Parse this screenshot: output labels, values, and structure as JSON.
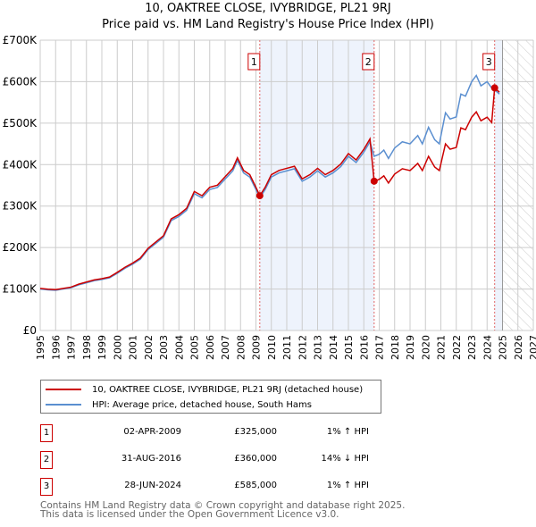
{
  "title": "10, OAKTREE CLOSE, IVYBRIDGE, PL21 9RJ",
  "subtitle": "Price paid vs. HM Land Registry's House Price Index (HPI)",
  "chart_data": {
    "type": "line",
    "xlim": [
      1995,
      2027
    ],
    "ylim": [
      0,
      700000
    ],
    "y_ticks": [
      {
        "v": 0,
        "label": "£0"
      },
      {
        "v": 100000,
        "label": "£100K"
      },
      {
        "v": 200000,
        "label": "£200K"
      },
      {
        "v": 300000,
        "label": "£300K"
      },
      {
        "v": 400000,
        "label": "£400K"
      },
      {
        "v": 500000,
        "label": "£500K"
      },
      {
        "v": 600000,
        "label": "£600K"
      },
      {
        "v": 700000,
        "label": "£700K"
      }
    ],
    "x_ticks": [
      "1995",
      "1996",
      "1997",
      "1998",
      "1999",
      "2000",
      "2001",
      "2002",
      "2003",
      "2004",
      "2005",
      "2006",
      "2007",
      "2008",
      "2009",
      "2010",
      "2011",
      "2012",
      "2013",
      "2014",
      "2015",
      "2016",
      "2017",
      "2018",
      "2019",
      "2020",
      "2021",
      "2022",
      "2023",
      "2024",
      "2025",
      "2026",
      "2027"
    ],
    "forecast_from": 2025.0,
    "colors": {
      "price": "#cc0000",
      "hpi": "#5b8fd0",
      "shade": "#eef3fc"
    },
    "hpi_series": {
      "name": "HPI: Average price, detached house, South Hams",
      "x": [
        1995.0,
        1995.5,
        1996,
        1996.5,
        1997,
        1997.5,
        1998,
        1998.5,
        1999,
        1999.5,
        2000,
        2000.5,
        2001,
        2001.5,
        2002,
        2002.5,
        2003,
        2003.5,
        2004,
        2004.5,
        2005,
        2005.5,
        2006,
        2006.5,
        2007,
        2007.5,
        2007.8,
        2008.2,
        2008.6,
        2009.0,
        2009.25,
        2009.6,
        2010,
        2010.5,
        2011,
        2011.5,
        2012,
        2012.5,
        2013,
        2013.5,
        2014,
        2014.5,
        2015,
        2015.5,
        2016,
        2016.4,
        2016.67,
        2017,
        2017.3,
        2017.6,
        2018,
        2018.5,
        2019,
        2019.5,
        2019.8,
        2020.2,
        2020.6,
        2020.9,
        2021.3,
        2021.6,
        2022,
        2022.3,
        2022.6,
        2023,
        2023.3,
        2023.6,
        2024,
        2024.3,
        2024.5,
        2024.8
      ],
      "y": [
        100000,
        98000,
        97000,
        100000,
        103000,
        110000,
        115000,
        120000,
        123000,
        127000,
        138000,
        150000,
        160000,
        172000,
        195000,
        210000,
        225000,
        265000,
        275000,
        290000,
        330000,
        320000,
        340000,
        345000,
        365000,
        385000,
        410000,
        380000,
        370000,
        340000,
        320000,
        340000,
        370000,
        380000,
        385000,
        390000,
        360000,
        370000,
        385000,
        370000,
        380000,
        395000,
        420000,
        405000,
        430000,
        455000,
        420000,
        425000,
        435000,
        415000,
        440000,
        455000,
        450000,
        470000,
        450000,
        490000,
        460000,
        450000,
        525000,
        510000,
        515000,
        570000,
        565000,
        600000,
        615000,
        590000,
        600000,
        585000,
        580000,
        570000
      ]
    },
    "price_series": {
      "name": "10, OAKTREE CLOSE, IVYBRIDGE, PL21 9RJ (detached house)"
    },
    "sales": [
      {
        "n": "1",
        "x": 2009.25,
        "date": "02-APR-2009",
        "price": 325000,
        "price_label": "£325,000",
        "hpi_label": "1% ↑ HPI"
      },
      {
        "n": "2",
        "x": 2016.67,
        "date": "31-AUG-2016",
        "price": 360000,
        "price_label": "£360,000",
        "hpi_label": "14% ↓ HPI"
      },
      {
        "n": "3",
        "x": 2024.49,
        "date": "28-JUN-2024",
        "price": 585000,
        "price_label": "£585,000",
        "hpi_label": "1% ↑ HPI"
      }
    ]
  },
  "legend": {
    "price": "10, OAKTREE CLOSE, IVYBRIDGE, PL21 9RJ (detached house)",
    "hpi": "HPI: Average price, detached house, South Hams"
  },
  "footer": {
    "line1": "Contains HM Land Registry data © Crown copyright and database right 2025.",
    "line2": "This data is licensed under the Open Government Licence v3.0."
  }
}
